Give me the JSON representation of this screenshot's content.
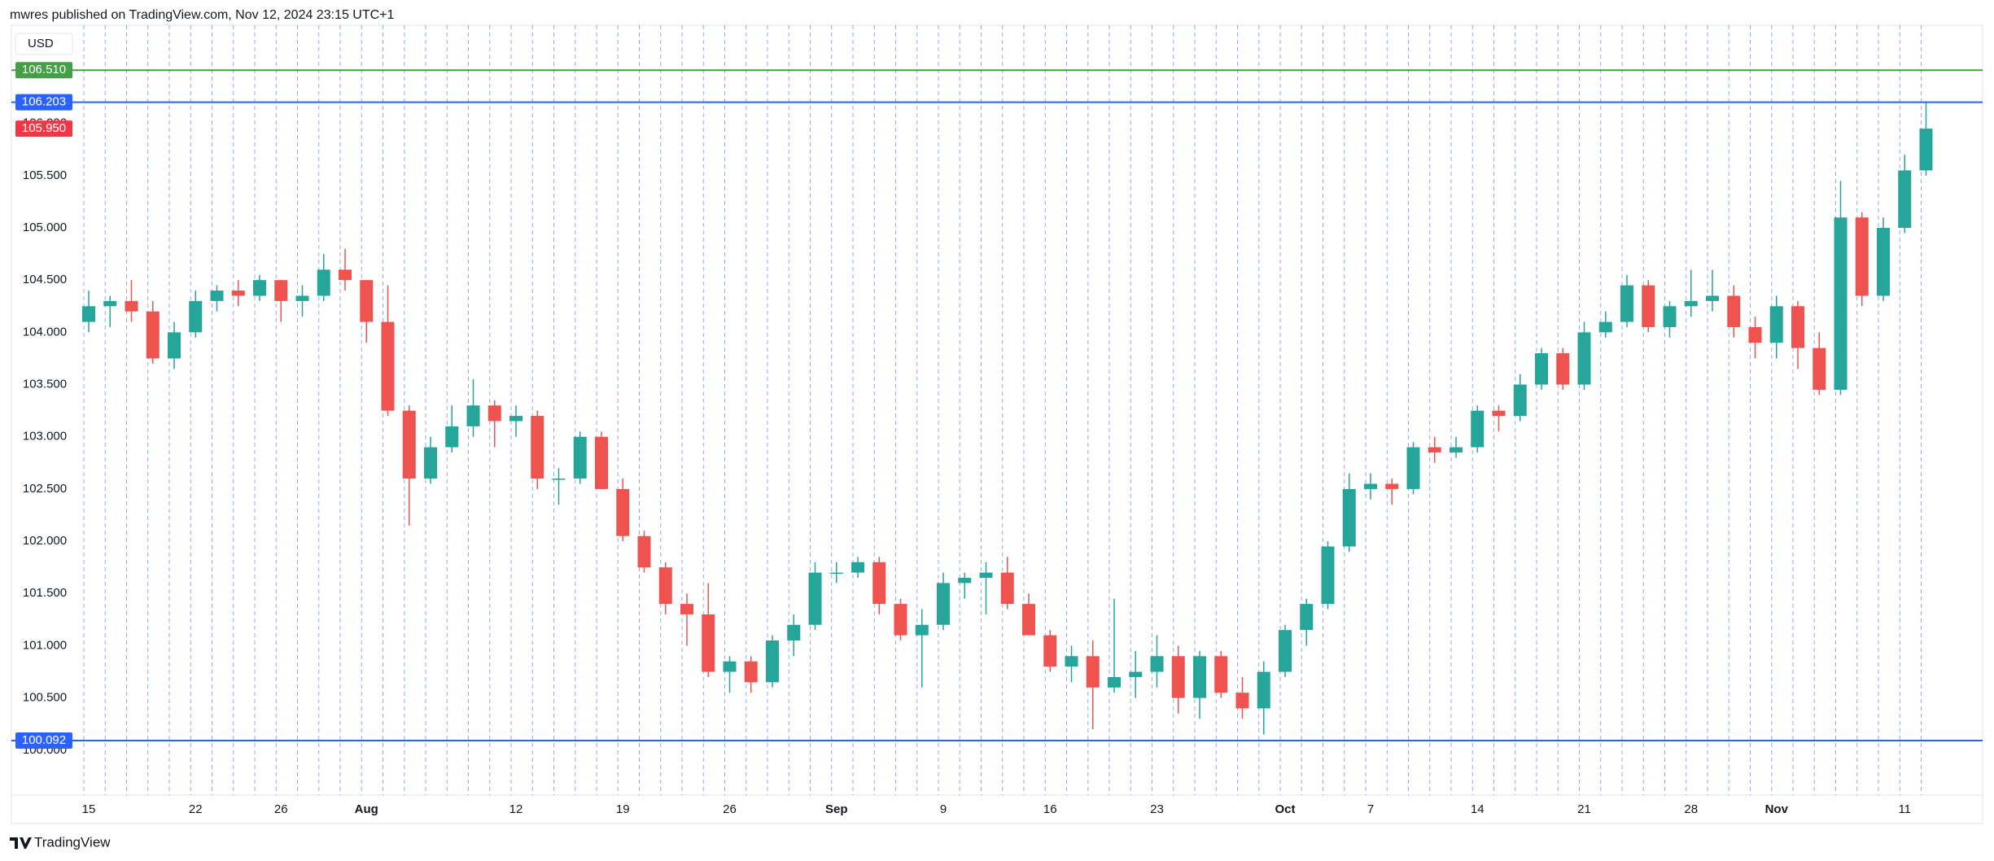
{
  "header": {
    "text": "mwres published on TradingView.com, Nov 12, 2024 23:15 UTC+1"
  },
  "footer": {
    "logo": "TradingView"
  },
  "chart_data": {
    "type": "candlestick",
    "currency": "USD",
    "up_color": "#26a69a",
    "down_color": "#ef5350",
    "categories": [
      "15",
      null,
      null,
      null,
      null,
      "22",
      null,
      null,
      null,
      "26",
      null,
      null,
      null,
      "Aug",
      null,
      null,
      null,
      null,
      null,
      null,
      "12",
      null,
      null,
      null,
      null,
      "19",
      null,
      null,
      null,
      null,
      "26",
      null,
      null,
      null,
      null,
      "Sep",
      null,
      null,
      null,
      null,
      "9",
      null,
      null,
      null,
      null,
      "16",
      null,
      null,
      null,
      null,
      "23",
      null,
      null,
      null,
      null,
      null,
      "Oct",
      null,
      null,
      null,
      "7",
      null,
      null,
      null,
      null,
      "14",
      null,
      null,
      null,
      null,
      "21",
      null,
      null,
      null,
      null,
      "28",
      null,
      null,
      null,
      "Nov",
      null,
      null,
      null,
      null,
      null,
      "11",
      null
    ],
    "open": [
      104.1,
      104.25,
      104.3,
      104.2,
      103.75,
      104.0,
      104.3,
      104.4,
      104.35,
      104.5,
      104.3,
      104.35,
      104.6,
      104.5,
      104.1,
      103.25,
      102.6,
      102.9,
      103.1,
      103.3,
      103.15,
      103.2,
      102.6,
      102.6,
      103.0,
      102.5,
      102.05,
      101.75,
      101.4,
      101.3,
      100.75,
      100.85,
      100.65,
      101.05,
      101.2,
      101.7,
      101.7,
      101.8,
      101.4,
      101.1,
      101.2,
      101.6,
      101.65,
      101.7,
      101.4,
      101.1,
      100.8,
      100.9,
      100.6,
      100.7,
      100.75,
      100.9,
      100.5,
      100.9,
      100.55,
      100.4,
      100.75,
      101.15,
      101.4,
      101.95,
      102.5,
      102.55,
      102.5,
      102.9,
      102.85,
      102.9,
      103.25,
      103.2,
      103.5,
      103.8,
      103.5,
      104.0,
      104.1,
      104.45,
      104.05,
      104.25,
      104.3,
      104.35,
      104.05,
      103.9,
      104.25,
      103.85,
      103.45,
      105.1,
      104.35,
      105.0,
      105.55
    ],
    "high": [
      104.4,
      104.35,
      104.5,
      104.3,
      104.1,
      104.4,
      104.45,
      104.5,
      104.55,
      104.5,
      104.45,
      104.75,
      104.8,
      104.5,
      104.45,
      103.3,
      103.0,
      103.3,
      103.55,
      103.35,
      103.3,
      103.25,
      102.7,
      103.05,
      103.05,
      102.6,
      102.1,
      101.8,
      101.5,
      101.6,
      100.9,
      100.9,
      101.1,
      101.3,
      101.8,
      101.8,
      101.85,
      101.85,
      101.45,
      101.35,
      101.7,
      101.7,
      101.8,
      101.85,
      101.5,
      101.15,
      101.0,
      101.05,
      101.45,
      100.95,
      101.1,
      101.0,
      100.95,
      100.95,
      100.7,
      100.85,
      101.2,
      101.45,
      102.0,
      102.65,
      102.65,
      102.6,
      102.95,
      103.0,
      103.0,
      103.3,
      103.3,
      103.6,
      103.85,
      103.85,
      104.1,
      104.2,
      104.55,
      104.5,
      104.3,
      104.6,
      104.6,
      104.45,
      104.15,
      104.35,
      104.3,
      104.0,
      105.45,
      105.15,
      105.1,
      105.7,
      106.2
    ],
    "low": [
      104.0,
      104.05,
      104.1,
      103.7,
      103.65,
      103.95,
      104.2,
      104.25,
      104.3,
      104.1,
      104.15,
      104.3,
      104.4,
      103.9,
      103.2,
      102.15,
      102.55,
      102.85,
      103.0,
      102.9,
      103.0,
      102.5,
      102.35,
      102.55,
      102.5,
      102.0,
      101.7,
      101.3,
      101.0,
      100.7,
      100.55,
      100.55,
      100.6,
      100.9,
      101.15,
      101.6,
      101.65,
      101.3,
      101.05,
      100.6,
      101.15,
      101.45,
      101.3,
      101.35,
      101.1,
      100.75,
      100.65,
      100.2,
      100.55,
      100.5,
      100.6,
      100.35,
      100.3,
      100.5,
      100.3,
      100.15,
      100.7,
      101.0,
      101.35,
      101.9,
      102.4,
      102.35,
      102.45,
      102.75,
      102.8,
      102.85,
      103.05,
      103.15,
      103.45,
      103.45,
      103.45,
      103.95,
      104.05,
      104.0,
      103.95,
      104.15,
      104.2,
      103.95,
      103.75,
      103.75,
      103.65,
      103.4,
      103.4,
      104.25,
      104.3,
      104.95,
      105.5
    ],
    "close": [
      104.25,
      104.3,
      104.2,
      103.75,
      104.0,
      104.3,
      104.4,
      104.35,
      104.5,
      104.3,
      104.35,
      104.6,
      104.5,
      104.1,
      103.25,
      102.6,
      102.9,
      103.1,
      103.3,
      103.15,
      103.2,
      102.6,
      102.6,
      103.0,
      102.5,
      102.05,
      101.75,
      101.4,
      101.3,
      100.75,
      100.85,
      100.65,
      101.05,
      101.2,
      101.7,
      101.7,
      101.8,
      101.4,
      101.1,
      101.2,
      101.6,
      101.65,
      101.7,
      101.4,
      101.1,
      100.8,
      100.9,
      100.6,
      100.7,
      100.75,
      100.9,
      100.5,
      100.9,
      100.55,
      100.4,
      100.75,
      101.15,
      101.4,
      101.95,
      102.5,
      102.55,
      102.5,
      102.9,
      102.85,
      102.9,
      103.25,
      103.2,
      103.5,
      103.8,
      103.5,
      104.0,
      104.1,
      104.45,
      104.05,
      104.25,
      104.3,
      104.35,
      104.05,
      103.9,
      104.25,
      103.85,
      103.45,
      105.1,
      104.35,
      105.0,
      105.55,
      105.95
    ],
    "ylim": [
      99.57,
      106.94
    ],
    "yticks": [
      {
        "value": 100,
        "label": "100.000"
      },
      {
        "value": 100.5,
        "label": "100.500"
      },
      {
        "value": 101,
        "label": "101.000"
      },
      {
        "value": 101.5,
        "label": "101.500"
      },
      {
        "value": 102,
        "label": "102.000"
      },
      {
        "value": 102.5,
        "label": "102.500"
      },
      {
        "value": 103,
        "label": "103.000"
      },
      {
        "value": 103.5,
        "label": "103.500"
      },
      {
        "value": 104,
        "label": "104.000"
      },
      {
        "value": 104.5,
        "label": "104.500"
      },
      {
        "value": 105,
        "label": "105.000"
      },
      {
        "value": 105.5,
        "label": "105.500"
      },
      {
        "value": 106,
        "label": "106.000"
      }
    ],
    "hlines": [
      {
        "value": 106.51,
        "label": "106.510",
        "color": "#43a047"
      },
      {
        "value": 106.203,
        "label": "106.203",
        "color": "#2962ff"
      },
      {
        "value": 100.092,
        "label": "100.092",
        "color": "#2962ff"
      }
    ],
    "last_price": {
      "value": 105.95,
      "label": "105.950",
      "color": "#f23645"
    }
  }
}
